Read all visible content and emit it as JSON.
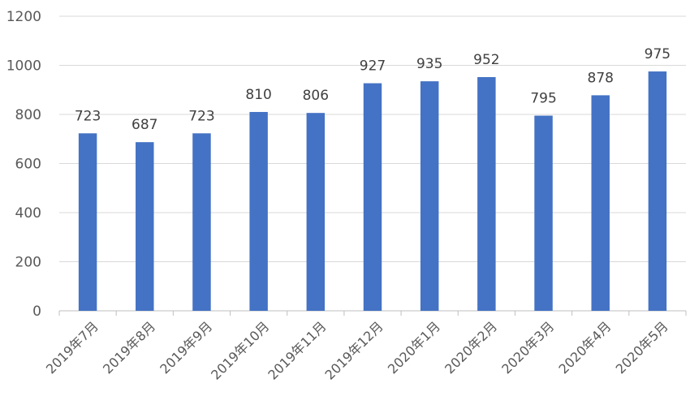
{
  "chart_data": {
    "type": "bar",
    "title": "",
    "xlabel": "",
    "ylabel": "",
    "categories": [
      "2019年7月",
      "2019年8月",
      "2019年9月",
      "2019年10月",
      "2019年11月",
      "2019年12月",
      "2020年1月",
      "2020年2月",
      "2020年3月",
      "2020年4月",
      "2020年5月"
    ],
    "values": [
      723,
      687,
      723,
      810,
      806,
      927,
      935,
      952,
      795,
      878,
      975
    ],
    "ylim": [
      0,
      1200
    ],
    "yticks": [
      0,
      200,
      400,
      600,
      800,
      1000,
      1200
    ],
    "grid": true,
    "legend": "none",
    "data_labels": true,
    "bar_color": "#4472c4"
  }
}
